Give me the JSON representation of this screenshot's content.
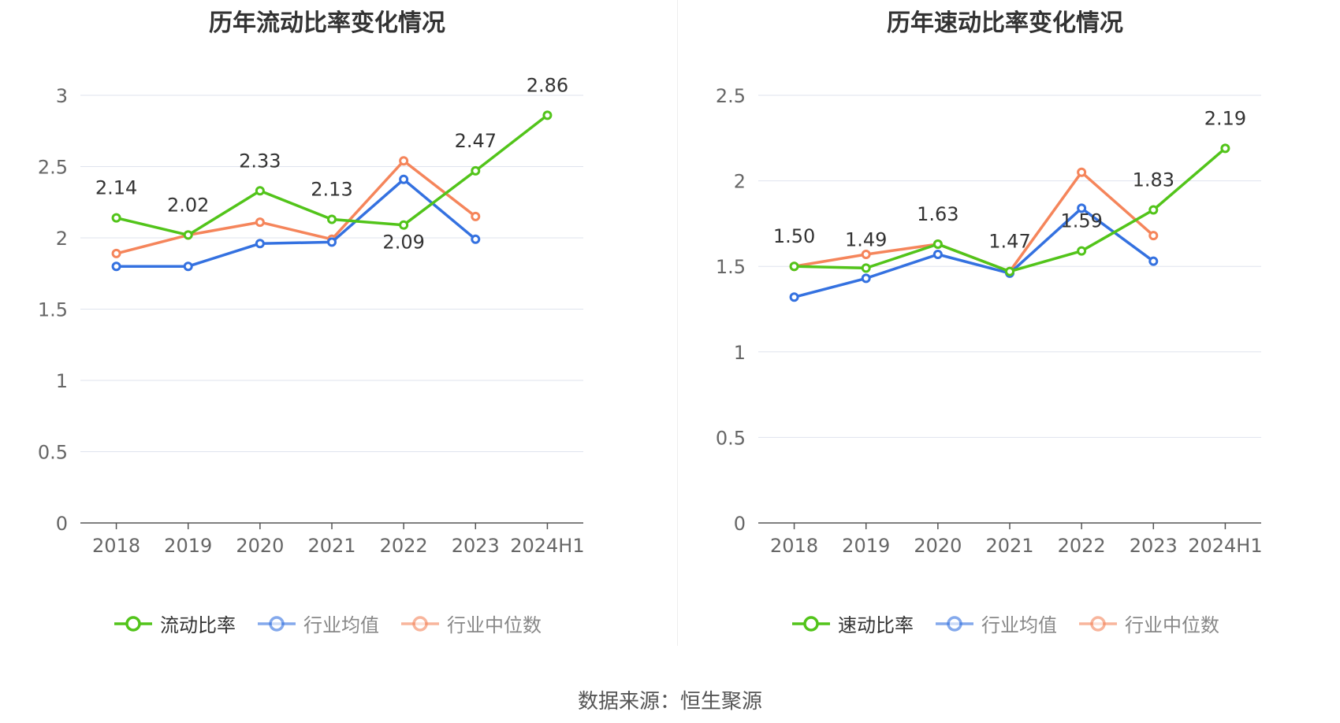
{
  "chart_data": [
    {
      "type": "line",
      "title": "历年流动比率变化情况",
      "categories": [
        "2018",
        "2019",
        "2020",
        "2021",
        "2022",
        "2023",
        "2024H1"
      ],
      "yticks": [
        "0",
        "0.5",
        "1",
        "1.5",
        "2",
        "2.5",
        "3"
      ],
      "ylim": [
        0,
        3
      ],
      "grid": true,
      "legend_position": "bottom",
      "series": [
        {
          "name": "流动比率",
          "color": "#52c41a",
          "values": [
            2.14,
            2.02,
            2.33,
            2.13,
            2.09,
            2.47,
            2.86
          ],
          "labels": [
            "2.14",
            "2.02",
            "2.33",
            "2.13",
            "2.09",
            "2.47",
            "2.86"
          ]
        },
        {
          "name": "行业均值",
          "color": "#3471e0",
          "values": [
            1.8,
            1.8,
            1.96,
            1.97,
            2.41,
            1.99,
            null
          ]
        },
        {
          "name": "行业中位数",
          "color": "#f5855b",
          "values": [
            1.89,
            2.02,
            2.11,
            1.99,
            2.54,
            2.15,
            null
          ]
        }
      ]
    },
    {
      "type": "line",
      "title": "历年速动比率变化情况",
      "categories": [
        "2018",
        "2019",
        "2020",
        "2021",
        "2022",
        "2023",
        "2024H1"
      ],
      "yticks": [
        "0",
        "0.5",
        "1",
        "1.5",
        "2",
        "2.5"
      ],
      "ylim": [
        0,
        2.5
      ],
      "grid": true,
      "legend_position": "bottom",
      "series": [
        {
          "name": "速动比率",
          "color": "#52c41a",
          "values": [
            1.5,
            1.49,
            1.63,
            1.47,
            1.59,
            1.83,
            2.19
          ],
          "labels": [
            "1.50",
            "1.49",
            "1.63",
            "1.47",
            "1.59",
            "1.83",
            "2.19"
          ]
        },
        {
          "name": "行业均值",
          "color": "#3471e0",
          "values": [
            1.32,
            1.43,
            1.57,
            1.46,
            1.84,
            1.53,
            null
          ]
        },
        {
          "name": "行业中位数",
          "color": "#f5855b",
          "values": [
            1.5,
            1.57,
            1.63,
            1.47,
            2.05,
            1.68,
            null
          ]
        }
      ]
    }
  ],
  "source_text": "数据来源：恒生聚源"
}
